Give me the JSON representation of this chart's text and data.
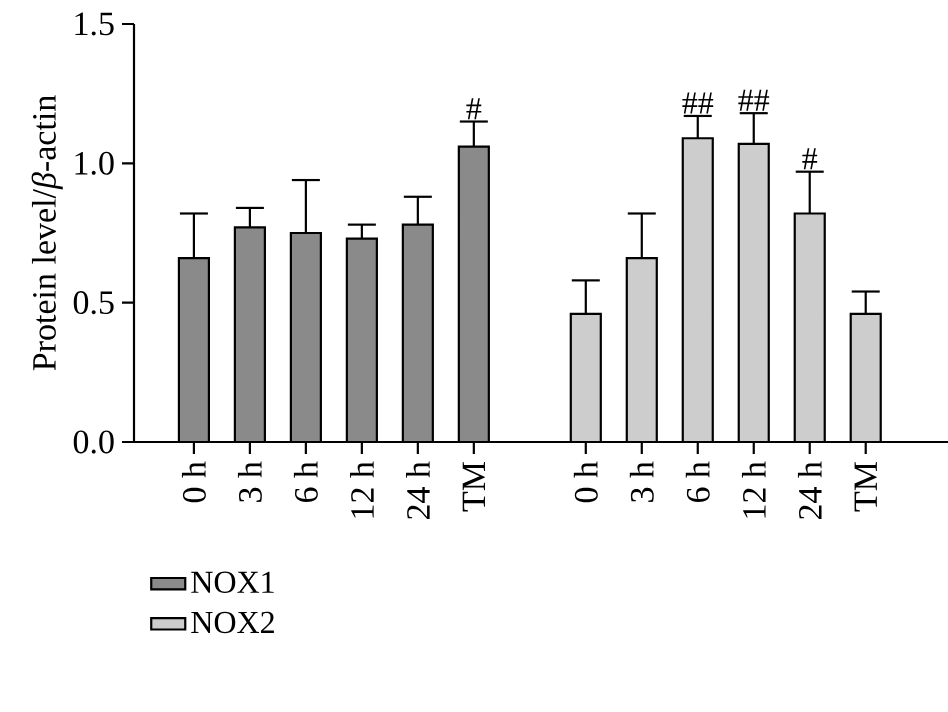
{
  "chart_data": {
    "type": "bar",
    "ylabel": "Protein level/*β*-actin",
    "categories": [
      "0 h",
      "3 h",
      "6 h",
      "12 h",
      "24 h",
      "TM",
      null,
      "0 h",
      "3 h",
      "6 h",
      "12 h",
      "24 h",
      "TM"
    ],
    "series": [
      {
        "name": "NOX1",
        "color": "#8a8a8a",
        "values": [
          0.66,
          0.77,
          0.75,
          0.73,
          0.78,
          1.06,
          null,
          null,
          null,
          null,
          null,
          null,
          null
        ],
        "errors": [
          [
            0.66,
            0.82
          ],
          [
            0.77,
            0.84
          ],
          [
            0.75,
            0.94
          ],
          [
            0.73,
            0.78
          ],
          [
            0.78,
            0.88
          ],
          [
            1.06,
            1.15
          ],
          null,
          null,
          null,
          null,
          null,
          null,
          null
        ]
      },
      {
        "name": "NOX2",
        "color": "#cdcdcd",
        "values": [
          null,
          null,
          null,
          null,
          null,
          null,
          null,
          0.46,
          0.66,
          1.09,
          1.07,
          0.82,
          0.46
        ],
        "errors": [
          null,
          null,
          null,
          null,
          null,
          null,
          null,
          [
            0.46,
            0.58
          ],
          [
            0.66,
            0.82
          ],
          [
            1.09,
            1.17
          ],
          [
            1.07,
            1.18
          ],
          [
            0.82,
            0.97
          ],
          [
            0.46,
            0.54
          ]
        ]
      }
    ],
    "ylim": [
      0,
      1.5
    ],
    "yticks": [
      {
        "value": 0,
        "label": "0.0"
      },
      {
        "value": 0.5,
        "label": "0.5"
      },
      {
        "value": 1.0,
        "label": "1.0"
      },
      {
        "value": 1.5,
        "label": "1.5"
      }
    ],
    "annotations": [
      "#",
      "##",
      "##",
      "#"
    ],
    "legend": "bottom left"
  }
}
